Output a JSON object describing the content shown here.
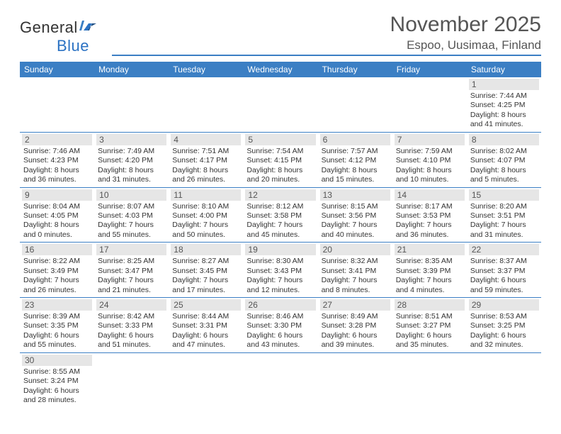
{
  "logo": {
    "word1": "General",
    "word2": "Blue"
  },
  "header": {
    "title": "November 2025",
    "location": "Espoo, Uusimaa, Finland"
  },
  "colors": {
    "header_bg": "#3b7fc4",
    "daynum_bg": "#e6e6e6",
    "border": "#3b7fc4",
    "text": "#333333",
    "muted": "#555555"
  },
  "weekdays": [
    "Sunday",
    "Monday",
    "Tuesday",
    "Wednesday",
    "Thursday",
    "Friday",
    "Saturday"
  ],
  "layout": {
    "first_weekday_index": 6,
    "days_in_month": 30,
    "rows": 6
  },
  "days": {
    "1": {
      "sunrise": "7:44 AM",
      "sunset": "4:25 PM",
      "daylight": "8 hours and 41 minutes."
    },
    "2": {
      "sunrise": "7:46 AM",
      "sunset": "4:23 PM",
      "daylight": "8 hours and 36 minutes."
    },
    "3": {
      "sunrise": "7:49 AM",
      "sunset": "4:20 PM",
      "daylight": "8 hours and 31 minutes."
    },
    "4": {
      "sunrise": "7:51 AM",
      "sunset": "4:17 PM",
      "daylight": "8 hours and 26 minutes."
    },
    "5": {
      "sunrise": "7:54 AM",
      "sunset": "4:15 PM",
      "daylight": "8 hours and 20 minutes."
    },
    "6": {
      "sunrise": "7:57 AM",
      "sunset": "4:12 PM",
      "daylight": "8 hours and 15 minutes."
    },
    "7": {
      "sunrise": "7:59 AM",
      "sunset": "4:10 PM",
      "daylight": "8 hours and 10 minutes."
    },
    "8": {
      "sunrise": "8:02 AM",
      "sunset": "4:07 PM",
      "daylight": "8 hours and 5 minutes."
    },
    "9": {
      "sunrise": "8:04 AM",
      "sunset": "4:05 PM",
      "daylight": "8 hours and 0 minutes."
    },
    "10": {
      "sunrise": "8:07 AM",
      "sunset": "4:03 PM",
      "daylight": "7 hours and 55 minutes."
    },
    "11": {
      "sunrise": "8:10 AM",
      "sunset": "4:00 PM",
      "daylight": "7 hours and 50 minutes."
    },
    "12": {
      "sunrise": "8:12 AM",
      "sunset": "3:58 PM",
      "daylight": "7 hours and 45 minutes."
    },
    "13": {
      "sunrise": "8:15 AM",
      "sunset": "3:56 PM",
      "daylight": "7 hours and 40 minutes."
    },
    "14": {
      "sunrise": "8:17 AM",
      "sunset": "3:53 PM",
      "daylight": "7 hours and 36 minutes."
    },
    "15": {
      "sunrise": "8:20 AM",
      "sunset": "3:51 PM",
      "daylight": "7 hours and 31 minutes."
    },
    "16": {
      "sunrise": "8:22 AM",
      "sunset": "3:49 PM",
      "daylight": "7 hours and 26 minutes."
    },
    "17": {
      "sunrise": "8:25 AM",
      "sunset": "3:47 PM",
      "daylight": "7 hours and 21 minutes."
    },
    "18": {
      "sunrise": "8:27 AM",
      "sunset": "3:45 PM",
      "daylight": "7 hours and 17 minutes."
    },
    "19": {
      "sunrise": "8:30 AM",
      "sunset": "3:43 PM",
      "daylight": "7 hours and 12 minutes."
    },
    "20": {
      "sunrise": "8:32 AM",
      "sunset": "3:41 PM",
      "daylight": "7 hours and 8 minutes."
    },
    "21": {
      "sunrise": "8:35 AM",
      "sunset": "3:39 PM",
      "daylight": "7 hours and 4 minutes."
    },
    "22": {
      "sunrise": "8:37 AM",
      "sunset": "3:37 PM",
      "daylight": "6 hours and 59 minutes."
    },
    "23": {
      "sunrise": "8:39 AM",
      "sunset": "3:35 PM",
      "daylight": "6 hours and 55 minutes."
    },
    "24": {
      "sunrise": "8:42 AM",
      "sunset": "3:33 PM",
      "daylight": "6 hours and 51 minutes."
    },
    "25": {
      "sunrise": "8:44 AM",
      "sunset": "3:31 PM",
      "daylight": "6 hours and 47 minutes."
    },
    "26": {
      "sunrise": "8:46 AM",
      "sunset": "3:30 PM",
      "daylight": "6 hours and 43 minutes."
    },
    "27": {
      "sunrise": "8:49 AM",
      "sunset": "3:28 PM",
      "daylight": "6 hours and 39 minutes."
    },
    "28": {
      "sunrise": "8:51 AM",
      "sunset": "3:27 PM",
      "daylight": "6 hours and 35 minutes."
    },
    "29": {
      "sunrise": "8:53 AM",
      "sunset": "3:25 PM",
      "daylight": "6 hours and 32 minutes."
    },
    "30": {
      "sunrise": "8:55 AM",
      "sunset": "3:24 PM",
      "daylight": "6 hours and 28 minutes."
    }
  },
  "labels": {
    "sunrise": "Sunrise: ",
    "sunset": "Sunset: ",
    "daylight": "Daylight: "
  }
}
